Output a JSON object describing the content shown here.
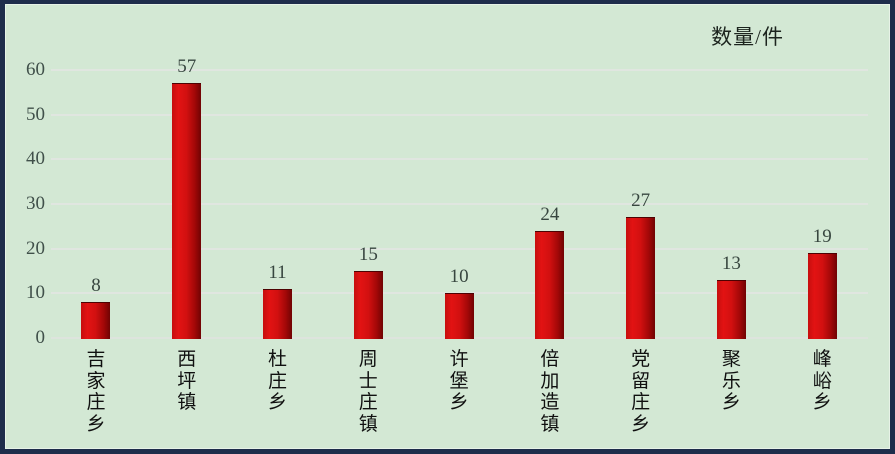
{
  "chart_data": {
    "type": "bar",
    "title": "",
    "unit_label": "数量/件",
    "categories": [
      "吉家庄乡",
      "西坪镇",
      "杜庄乡",
      "周士庄镇",
      "许堡乡",
      "倍加造镇",
      "党留庄乡",
      "聚乐乡",
      "峰峪乡"
    ],
    "values": [
      8,
      57,
      11,
      15,
      10,
      24,
      27,
      13,
      19
    ],
    "xlabel": "",
    "ylabel": "数量/件",
    "ylim": [
      0,
      60
    ],
    "yticks": [
      0,
      10,
      20,
      30,
      40,
      50,
      60
    ],
    "grid": true,
    "legend": "none",
    "category_label_orientation": "vertical",
    "colors": {
      "bar_gradient_start": "#e21313",
      "bar_gradient_end": "#700303",
      "plot_background": "#d3e8d4",
      "frame_border": "#1e2d4b",
      "gridline": "#e0e6e0",
      "tick_text": "#40504a",
      "category_text": "#101010"
    }
  }
}
